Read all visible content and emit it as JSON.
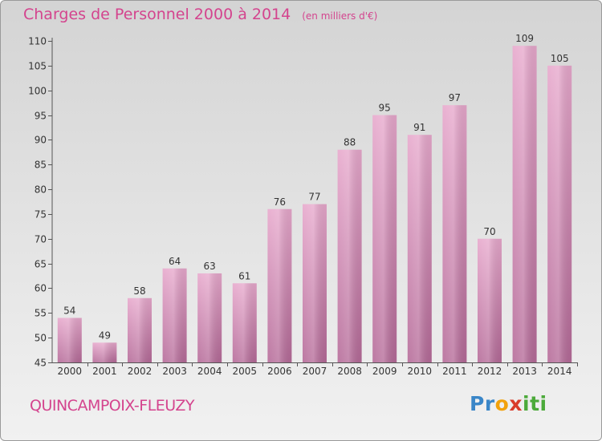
{
  "chart_data": {
    "type": "bar",
    "title": "Charges de Personnel 2000 à 2014",
    "unit_note": "(en milliers d'€)",
    "categories": [
      "2000",
      "2001",
      "2002",
      "2003",
      "2004",
      "2005",
      "2006",
      "2007",
      "2008",
      "2009",
      "2010",
      "2011",
      "2012",
      "2013",
      "2014"
    ],
    "values": [
      54,
      49,
      58,
      64,
      63,
      61,
      76,
      77,
      88,
      95,
      91,
      97,
      70,
      109,
      105
    ],
    "ylim": [
      45,
      110
    ],
    "yticks": [
      45,
      50,
      55,
      60,
      65,
      70,
      75,
      80,
      85,
      90,
      95,
      100,
      105,
      110
    ],
    "grid": false,
    "bar_color": "#d68ab5"
  },
  "commune": "QUINCAMPOIX-FLEUZY",
  "logo": {
    "letters": [
      {
        "char": "P",
        "color": "#3a86c8"
      },
      {
        "char": "r",
        "color": "#3a86c8"
      },
      {
        "char": "o",
        "color": "#f2a20c"
      },
      {
        "char": "x",
        "color": "#d93b2b"
      },
      {
        "char": "i",
        "color": "#4caa3a"
      },
      {
        "char": "t",
        "color": "#4caa3a"
      },
      {
        "char": "i",
        "color": "#4caa3a"
      }
    ]
  }
}
